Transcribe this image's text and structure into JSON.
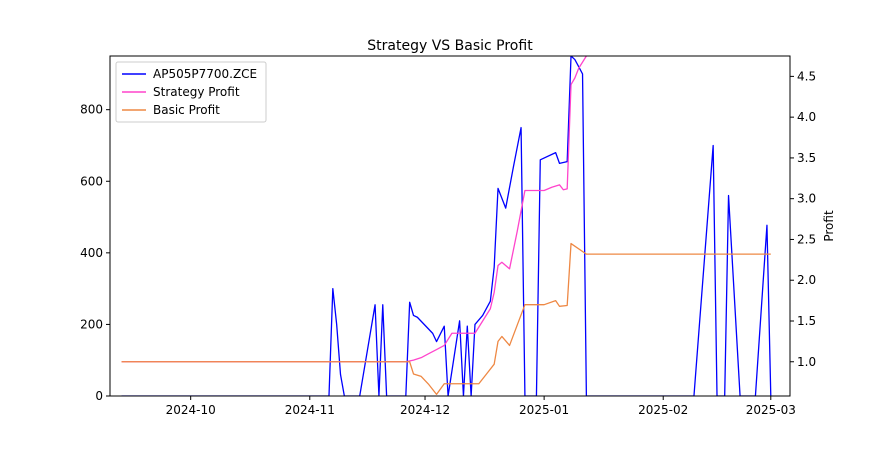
{
  "chart_data": {
    "type": "line",
    "title": "Strategy VS Basic Profit",
    "xlabel": "",
    "ylabel_left": "",
    "ylabel_right": "Profit",
    "x_ticks": [
      "2024-10",
      "2024-11",
      "2024-12",
      "2025-01",
      "2025-02",
      "2025-03"
    ],
    "x_tick_dates": [
      "2024-10-01",
      "2024-11-01",
      "2024-12-01",
      "2025-01-01",
      "2025-02-01",
      "2025-03-01"
    ],
    "xlim": [
      "2024-09-10",
      "2025-03-06"
    ],
    "y_left_ticks": [
      0,
      200,
      400,
      600,
      800
    ],
    "ylim_left": [
      0,
      950
    ],
    "y_right_ticks": [
      1.0,
      1.5,
      2.0,
      2.5,
      3.0,
      3.5,
      4.0,
      4.5
    ],
    "ylim_right": [
      0.58,
      4.75
    ],
    "legend_position": "upper-left",
    "series": [
      {
        "name": "AP505P7700.ZCE",
        "axis": "left",
        "color": "#0000ff",
        "points": [
          [
            "2024-09-13",
            0
          ],
          [
            "2024-10-15",
            0
          ],
          [
            "2024-11-06",
            0
          ],
          [
            "2024-11-07",
            300
          ],
          [
            "2024-11-08",
            200
          ],
          [
            "2024-11-09",
            60
          ],
          [
            "2024-11-10",
            0
          ],
          [
            "2024-11-14",
            0
          ],
          [
            "2024-11-18",
            255
          ],
          [
            "2024-11-19",
            0
          ],
          [
            "2024-11-20",
            255
          ],
          [
            "2024-11-21",
            0
          ],
          [
            "2024-11-26",
            0
          ],
          [
            "2024-11-27",
            262
          ],
          [
            "2024-11-28",
            225
          ],
          [
            "2024-11-29",
            220
          ],
          [
            "2024-12-03",
            175
          ],
          [
            "2024-12-04",
            152
          ],
          [
            "2024-12-06",
            195
          ],
          [
            "2024-12-07",
            0
          ],
          [
            "2024-12-10",
            210
          ],
          [
            "2024-12-11",
            0
          ],
          [
            "2024-12-12",
            195
          ],
          [
            "2024-12-13",
            0
          ],
          [
            "2024-12-14",
            200
          ],
          [
            "2024-12-16",
            225
          ],
          [
            "2024-12-18",
            265
          ],
          [
            "2024-12-19",
            360
          ],
          [
            "2024-12-20",
            580
          ],
          [
            "2024-12-22",
            525
          ],
          [
            "2024-12-24",
            640
          ],
          [
            "2024-12-26",
            750
          ],
          [
            "2024-12-27",
            0
          ],
          [
            "2024-12-30",
            0
          ],
          [
            "2024-12-31",
            660
          ],
          [
            "2025-01-04",
            680
          ],
          [
            "2025-01-05",
            650
          ],
          [
            "2025-01-07",
            655
          ],
          [
            "2025-01-08",
            950
          ],
          [
            "2025-01-09",
            940
          ],
          [
            "2025-01-10",
            920
          ],
          [
            "2025-01-11",
            900
          ],
          [
            "2025-01-12",
            0
          ],
          [
            "2025-02-09",
            0
          ],
          [
            "2025-02-14",
            700
          ],
          [
            "2025-02-15",
            0
          ],
          [
            "2025-02-17",
            0
          ],
          [
            "2025-02-18",
            560
          ],
          [
            "2025-02-21",
            0
          ],
          [
            "2025-02-25",
            0
          ],
          [
            "2025-02-28",
            477
          ],
          [
            "2025-03-01",
            0
          ]
        ]
      },
      {
        "name": "Strategy Profit",
        "axis": "right",
        "color": "#ff44cc",
        "points": [
          [
            "2024-09-13",
            1.0
          ],
          [
            "2024-11-26",
            1.0
          ],
          [
            "2024-11-28",
            1.02
          ],
          [
            "2024-11-30",
            1.05
          ],
          [
            "2024-12-02",
            1.1
          ],
          [
            "2024-12-04",
            1.15
          ],
          [
            "2024-12-06",
            1.2
          ],
          [
            "2024-12-08",
            1.35
          ],
          [
            "2024-12-14",
            1.35
          ],
          [
            "2024-12-16",
            1.5
          ],
          [
            "2024-12-18",
            1.65
          ],
          [
            "2024-12-19",
            1.85
          ],
          [
            "2024-12-20",
            2.18
          ],
          [
            "2024-12-21",
            2.22
          ],
          [
            "2024-12-23",
            2.14
          ],
          [
            "2024-12-25",
            2.6
          ],
          [
            "2024-12-27",
            3.1
          ],
          [
            "2025-01-01",
            3.1
          ],
          [
            "2025-01-03",
            3.14
          ],
          [
            "2025-01-05",
            3.17
          ],
          [
            "2025-01-06",
            3.11
          ],
          [
            "2025-01-07",
            3.12
          ],
          [
            "2025-01-08",
            4.4
          ],
          [
            "2025-01-09",
            4.48
          ],
          [
            "2025-01-10",
            4.6
          ],
          [
            "2025-01-12",
            4.75
          ]
        ]
      },
      {
        "name": "Basic Profit",
        "axis": "right",
        "color": "#ee8844",
        "points": [
          [
            "2024-09-13",
            1.0
          ],
          [
            "2024-11-27",
            1.0
          ],
          [
            "2024-11-28",
            0.85
          ],
          [
            "2024-11-30",
            0.82
          ],
          [
            "2024-12-02",
            0.72
          ],
          [
            "2024-12-04",
            0.6
          ],
          [
            "2024-12-06",
            0.73
          ],
          [
            "2024-12-15",
            0.73
          ],
          [
            "2024-12-17",
            0.85
          ],
          [
            "2024-12-19",
            0.97
          ],
          [
            "2024-12-20",
            1.25
          ],
          [
            "2024-12-21",
            1.31
          ],
          [
            "2024-12-23",
            1.2
          ],
          [
            "2024-12-25",
            1.45
          ],
          [
            "2024-12-27",
            1.7
          ],
          [
            "2025-01-01",
            1.7
          ],
          [
            "2025-01-04",
            1.75
          ],
          [
            "2025-01-05",
            1.68
          ],
          [
            "2025-01-07",
            1.69
          ],
          [
            "2025-01-08",
            2.45
          ],
          [
            "2025-01-12",
            2.32
          ],
          [
            "2025-03-01",
            2.32
          ]
        ]
      }
    ]
  }
}
